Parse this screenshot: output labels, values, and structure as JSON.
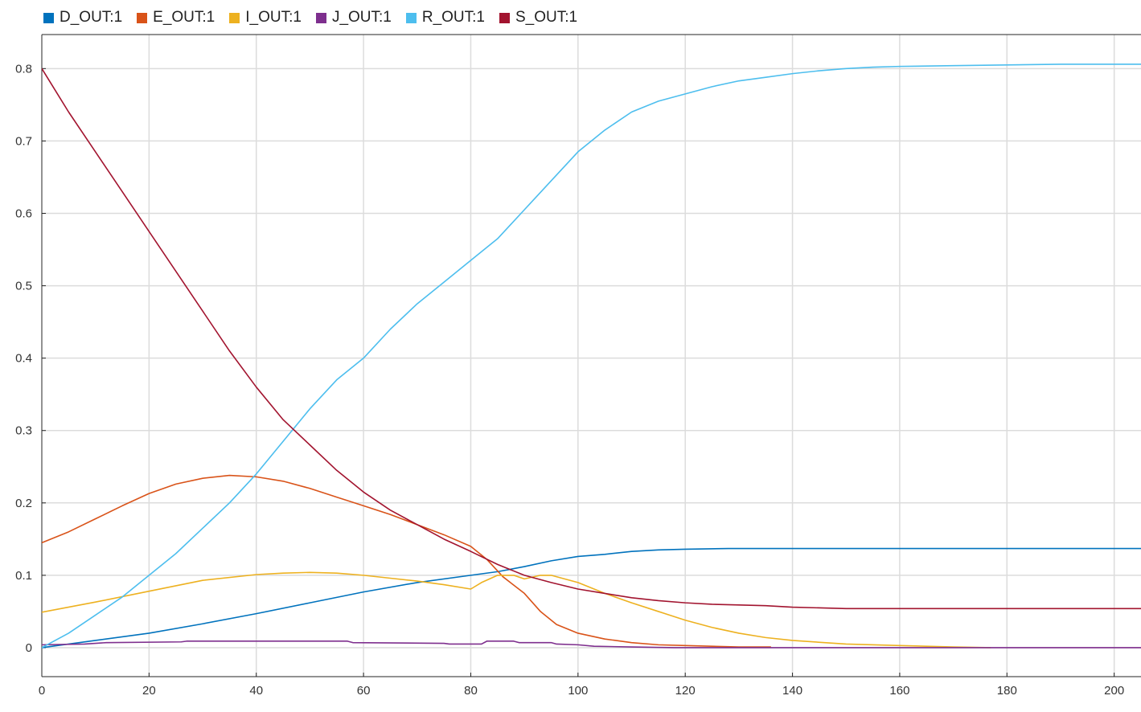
{
  "chart_data": {
    "type": "line",
    "title": "",
    "xlabel": "",
    "ylabel": "",
    "xlim": [
      0,
      205
    ],
    "ylim": [
      -0.04,
      0.847
    ],
    "x_ticks": [
      0,
      20,
      40,
      60,
      80,
      100,
      120,
      140,
      160,
      180,
      200
    ],
    "y_ticks": [
      0,
      0.1,
      0.2,
      0.3,
      0.4,
      0.5,
      0.6,
      0.7,
      0.8
    ],
    "grid": true,
    "legend_position": "top-left",
    "series": [
      {
        "name": "D_OUT:1",
        "color": "#0072BD",
        "points": [
          [
            0,
            0
          ],
          [
            10,
            0.01
          ],
          [
            20,
            0.02
          ],
          [
            30,
            0.033
          ],
          [
            40,
            0.047
          ],
          [
            50,
            0.062
          ],
          [
            60,
            0.077
          ],
          [
            70,
            0.09
          ],
          [
            80,
            0.1
          ],
          [
            85,
            0.105
          ],
          [
            90,
            0.112
          ],
          [
            95,
            0.12
          ],
          [
            100,
            0.126
          ],
          [
            105,
            0.129
          ],
          [
            110,
            0.133
          ],
          [
            115,
            0.135
          ],
          [
            120,
            0.136
          ],
          [
            128,
            0.137
          ],
          [
            140,
            0.137
          ],
          [
            160,
            0.137
          ],
          [
            180,
            0.137
          ],
          [
            205,
            0.137
          ]
        ]
      },
      {
        "name": "E_OUT:1",
        "color": "#D95319",
        "points": [
          [
            0,
            0.145
          ],
          [
            5,
            0.16
          ],
          [
            10,
            0.178
          ],
          [
            15,
            0.196
          ],
          [
            20,
            0.213
          ],
          [
            25,
            0.226
          ],
          [
            30,
            0.234
          ],
          [
            35,
            0.238
          ],
          [
            40,
            0.236
          ],
          [
            45,
            0.23
          ],
          [
            50,
            0.22
          ],
          [
            55,
            0.208
          ],
          [
            60,
            0.196
          ],
          [
            65,
            0.184
          ],
          [
            70,
            0.17
          ],
          [
            75,
            0.156
          ],
          [
            80,
            0.14
          ],
          [
            83,
            0.122
          ],
          [
            86,
            0.098
          ],
          [
            90,
            0.075
          ],
          [
            93,
            0.05
          ],
          [
            96,
            0.032
          ],
          [
            100,
            0.02
          ],
          [
            105,
            0.012
          ],
          [
            110,
            0.007
          ],
          [
            115,
            0.004
          ],
          [
            120,
            0.003
          ],
          [
            125,
            0.002
          ],
          [
            130,
            0.001
          ],
          [
            136,
            0.001
          ]
        ]
      },
      {
        "name": "I_OUT:1",
        "color": "#EDB120",
        "points": [
          [
            0,
            0.049
          ],
          [
            10,
            0.063
          ],
          [
            20,
            0.078
          ],
          [
            30,
            0.093
          ],
          [
            40,
            0.101
          ],
          [
            45,
            0.103
          ],
          [
            50,
            0.104
          ],
          [
            55,
            0.103
          ],
          [
            60,
            0.1
          ],
          [
            65,
            0.096
          ],
          [
            70,
            0.092
          ],
          [
            75,
            0.087
          ],
          [
            80,
            0.081
          ],
          [
            82,
            0.09
          ],
          [
            85,
            0.1
          ],
          [
            88,
            0.1
          ],
          [
            90,
            0.095
          ],
          [
            93,
            0.1
          ],
          [
            95,
            0.1
          ],
          [
            100,
            0.09
          ],
          [
            105,
            0.075
          ],
          [
            110,
            0.062
          ],
          [
            115,
            0.05
          ],
          [
            120,
            0.038
          ],
          [
            125,
            0.028
          ],
          [
            130,
            0.02
          ],
          [
            135,
            0.014
          ],
          [
            140,
            0.01
          ],
          [
            150,
            0.005
          ],
          [
            160,
            0.003
          ],
          [
            170,
            0.001
          ],
          [
            177,
            0
          ]
        ]
      },
      {
        "name": "J_OUT:1",
        "color": "#7E2F8E",
        "points": [
          [
            0,
            0.004
          ],
          [
            8,
            0.005
          ],
          [
            12,
            0.007
          ],
          [
            26,
            0.008
          ],
          [
            27,
            0.009
          ],
          [
            57,
            0.009
          ],
          [
            58,
            0.007
          ],
          [
            75,
            0.006
          ],
          [
            76,
            0.005
          ],
          [
            82,
            0.005
          ],
          [
            83,
            0.009
          ],
          [
            88,
            0.009
          ],
          [
            89,
            0.007
          ],
          [
            95,
            0.007
          ],
          [
            96,
            0.005
          ],
          [
            100,
            0.004
          ],
          [
            103,
            0.002
          ],
          [
            110,
            0.001
          ],
          [
            118,
            0
          ],
          [
            140,
            0
          ],
          [
            170,
            0
          ],
          [
            205,
            0
          ]
        ]
      },
      {
        "name": "R_OUT:1",
        "color": "#4DBEEE",
        "points": [
          [
            0,
            0
          ],
          [
            5,
            0.02
          ],
          [
            10,
            0.045
          ],
          [
            15,
            0.07
          ],
          [
            20,
            0.1
          ],
          [
            25,
            0.13
          ],
          [
            30,
            0.165
          ],
          [
            35,
            0.2
          ],
          [
            40,
            0.24
          ],
          [
            45,
            0.285
          ],
          [
            50,
            0.33
          ],
          [
            55,
            0.37
          ],
          [
            60,
            0.4
          ],
          [
            65,
            0.44
          ],
          [
            70,
            0.475
          ],
          [
            75,
            0.505
          ],
          [
            80,
            0.535
          ],
          [
            85,
            0.565
          ],
          [
            90,
            0.605
          ],
          [
            95,
            0.645
          ],
          [
            100,
            0.685
          ],
          [
            105,
            0.715
          ],
          [
            110,
            0.74
          ],
          [
            115,
            0.755
          ],
          [
            120,
            0.765
          ],
          [
            125,
            0.775
          ],
          [
            130,
            0.783
          ],
          [
            135,
            0.788
          ],
          [
            140,
            0.793
          ],
          [
            145,
            0.797
          ],
          [
            150,
            0.8
          ],
          [
            155,
            0.802
          ],
          [
            160,
            0.803
          ],
          [
            170,
            0.804
          ],
          [
            180,
            0.805
          ],
          [
            190,
            0.806
          ],
          [
            205,
            0.806
          ]
        ]
      },
      {
        "name": "S_OUT:1",
        "color": "#A2142F",
        "points": [
          [
            0,
            0.8
          ],
          [
            5,
            0.74
          ],
          [
            10,
            0.685
          ],
          [
            15,
            0.63
          ],
          [
            20,
            0.575
          ],
          [
            25,
            0.52
          ],
          [
            30,
            0.465
          ],
          [
            35,
            0.41
          ],
          [
            40,
            0.36
          ],
          [
            45,
            0.315
          ],
          [
            50,
            0.28
          ],
          [
            55,
            0.245
          ],
          [
            60,
            0.215
          ],
          [
            65,
            0.19
          ],
          [
            70,
            0.17
          ],
          [
            75,
            0.15
          ],
          [
            80,
            0.133
          ],
          [
            85,
            0.115
          ],
          [
            90,
            0.1
          ],
          [
            95,
            0.09
          ],
          [
            100,
            0.081
          ],
          [
            105,
            0.075
          ],
          [
            110,
            0.069
          ],
          [
            115,
            0.065
          ],
          [
            120,
            0.062
          ],
          [
            125,
            0.06
          ],
          [
            130,
            0.059
          ],
          [
            135,
            0.058
          ],
          [
            140,
            0.056
          ],
          [
            150,
            0.054
          ],
          [
            160,
            0.054
          ],
          [
            180,
            0.054
          ],
          [
            205,
            0.054
          ]
        ]
      }
    ]
  }
}
